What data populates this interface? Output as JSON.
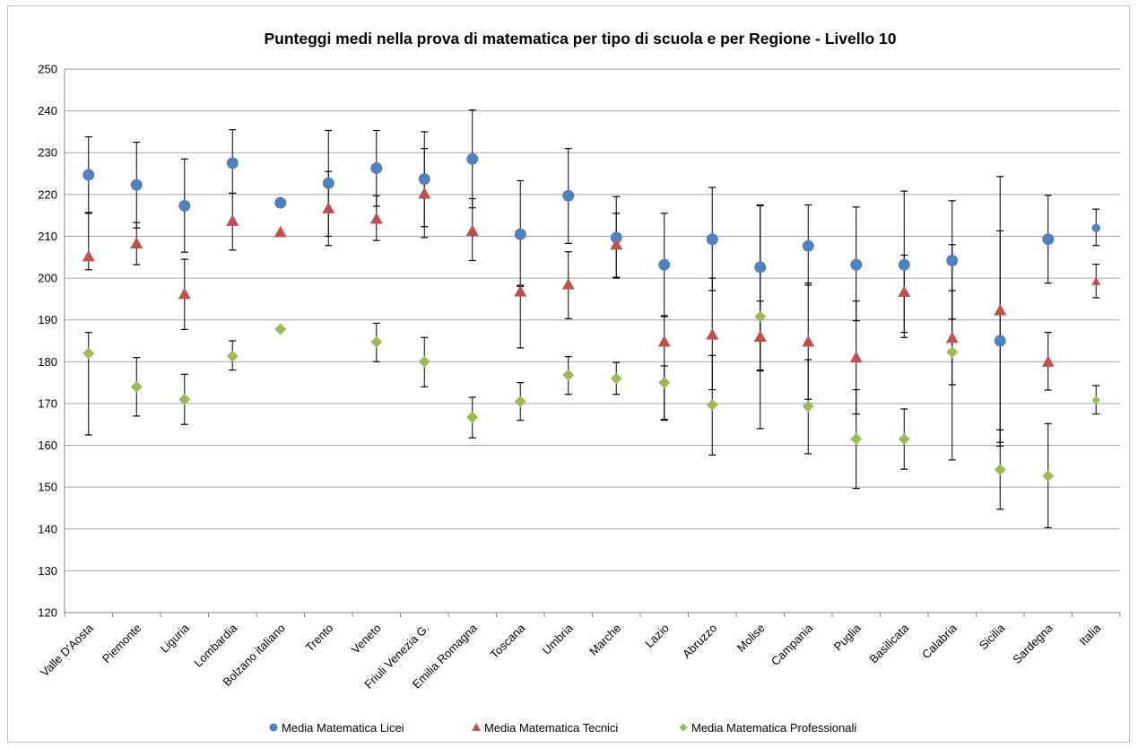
{
  "chart_data": {
    "type": "scatter",
    "title": "Punteggi medi nella prova di matematica per tipo di scuola e per Regione - Livello 10",
    "xlabel": "",
    "ylabel": "",
    "ylim": [
      120,
      250
    ],
    "yticks": [
      120,
      130,
      140,
      150,
      160,
      170,
      180,
      190,
      200,
      210,
      220,
      230,
      240,
      250
    ],
    "grid": true,
    "legend_position": "bottom",
    "categories": [
      "Valle D'Aosta",
      "Piemonte",
      "Liguria",
      "Lombardia",
      "Bolzano italiano",
      "Trento",
      "Veneto",
      "Friuli Venezia G.",
      "Emilia Romagna",
      "Toscana",
      "Umbria",
      "Marche",
      "Lazio",
      "Abruzzo",
      "Molise",
      "Campania",
      "Puglia",
      "Basilicata",
      "Calabria",
      "Sicilia",
      "Sardegna",
      "Italia"
    ],
    "series": [
      {
        "name": "Media Matematica Licei",
        "marker": "circle",
        "color": "#4f81bd",
        "values": [
          224.7,
          222.3,
          217.3,
          227.5,
          218.0,
          222.7,
          226.3,
          223.7,
          228.5,
          210.5,
          219.7,
          209.7,
          203.2,
          209.3,
          202.6,
          207.7,
          203.2,
          203.2,
          204.2,
          185.0,
          209.3,
          212.0
        ],
        "err_low": [
          215.5,
          212.0,
          206.2,
          220.3,
          null,
          210.0,
          217.2,
          212.3,
          216.8,
          198.0,
          208.3,
          200.2,
          190.8,
          197.0,
          178.0,
          198.3,
          189.8,
          187.0,
          190.2,
          159.8,
          198.8,
          207.8
        ],
        "err_high": [
          233.8,
          232.5,
          228.5,
          235.5,
          null,
          235.3,
          235.3,
          235.0,
          240.2,
          223.3,
          231.0,
          219.5,
          215.5,
          221.7,
          217.3,
          217.5,
          217.0,
          220.8,
          218.5,
          224.3,
          219.8,
          216.5
        ]
      },
      {
        "name": "Media Matematica Tecnici",
        "marker": "triangle",
        "color": "#c0504d",
        "values": [
          205.2,
          208.3,
          196.2,
          213.7,
          211.0,
          216.7,
          214.2,
          220.2,
          211.3,
          196.8,
          198.5,
          208.0,
          184.8,
          186.5,
          186.0,
          184.8,
          181.0,
          196.7,
          185.7,
          192.3,
          180.0,
          199.2
        ],
        "err_low": [
          202.0,
          203.2,
          187.7,
          206.7,
          null,
          207.8,
          209.0,
          209.7,
          204.2,
          183.3,
          190.3,
          200.0,
          166.0,
          173.3,
          177.8,
          171.0,
          167.5,
          185.8,
          174.5,
          160.7,
          173.2,
          195.3
        ],
        "err_high": [
          215.7,
          213.3,
          204.5,
          220.3,
          null,
          225.5,
          219.7,
          231.0,
          219.0,
          198.3,
          206.3,
          215.5,
          191.0,
          200.0,
          194.5,
          198.8,
          194.5,
          205.5,
          197.0,
          211.3,
          187.0,
          203.3
        ]
      },
      {
        "name": "Media Matematica Professionali",
        "marker": "diamond",
        "color": "#9bbb59",
        "values": [
          182.0,
          174.0,
          171.0,
          181.3,
          187.8,
          null,
          184.7,
          180.0,
          166.7,
          170.5,
          176.8,
          176.0,
          175.0,
          169.7,
          190.8,
          169.3,
          161.5,
          161.5,
          182.3,
          154.2,
          152.7,
          170.8
        ],
        "err_low": [
          162.5,
          167.0,
          165.0,
          178.0,
          null,
          null,
          180.0,
          174.0,
          161.8,
          166.0,
          172.2,
          172.2,
          166.2,
          157.7,
          164.0,
          158.0,
          149.7,
          154.3,
          156.5,
          144.7,
          140.3,
          167.5
        ],
        "err_high": [
          187.0,
          181.0,
          177.0,
          185.0,
          null,
          null,
          189.2,
          185.8,
          171.5,
          175.0,
          181.2,
          179.8,
          179.0,
          181.5,
          217.5,
          180.5,
          173.3,
          168.7,
          208.0,
          163.7,
          165.2,
          174.3
        ]
      }
    ]
  }
}
